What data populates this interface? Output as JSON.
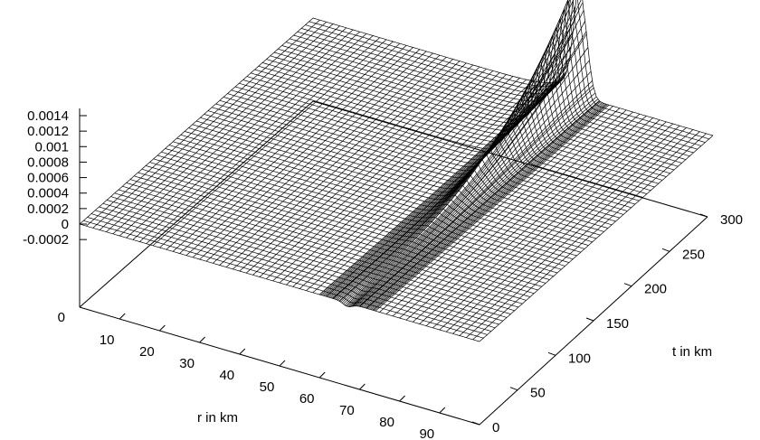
{
  "chart_data": {
    "type": "surface",
    "xlabel": "r in km",
    "ylabel": "t in km",
    "zlabel": "",
    "x_range": [
      0,
      100
    ],
    "y_range": [
      0,
      300
    ],
    "z_range": [
      -0.0002,
      0.0014
    ],
    "x_ticks": [
      "10",
      "20",
      "30",
      "40",
      "50",
      "60",
      "70",
      "80",
      "90"
    ],
    "y_ticks": [
      "0",
      "50",
      "100",
      "150",
      "200",
      "250",
      "300"
    ],
    "z_ticks": [
      "0.0014",
      "0.0012",
      "0.001",
      "0.0008",
      "0.0006",
      "0.0004",
      "0.0002",
      "0",
      "-0.0002"
    ],
    "base_label": "0",
    "surface": {
      "description_values": {
        "baseline_z": 0,
        "edge_step_z": 0.0001,
        "peak_z": 0.00125,
        "peak_r": 67,
        "peak_t": 300
      }
    },
    "grid": false,
    "legend": "none"
  }
}
